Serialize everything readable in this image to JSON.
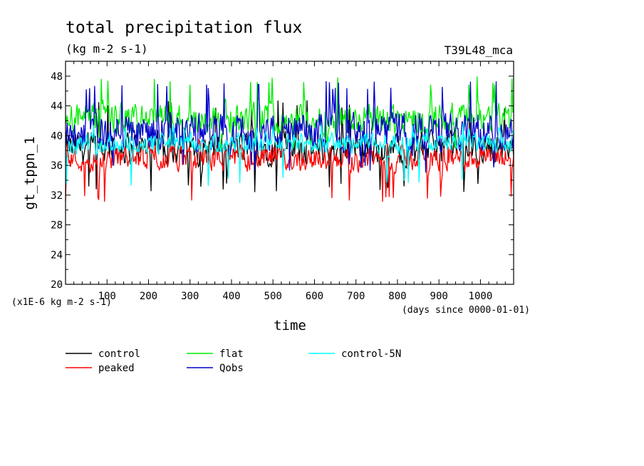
{
  "chart_data": {
    "type": "line",
    "title": "total precipitation flux",
    "units": "(kg m-2 s-1)",
    "run_label": "T39L48_mca",
    "xlabel": "time",
    "ylabel": "gt_tppn_1",
    "x_units_note": "(days since 0000-01-01)",
    "y_scale_note": "(x1E-6 kg m-2 s-1)",
    "xlim": [
      0,
      1080
    ],
    "ylim": [
      20,
      50
    ],
    "x_ticks": [
      100,
      200,
      300,
      400,
      500,
      600,
      700,
      800,
      900,
      1000
    ],
    "y_ticks": [
      20,
      24,
      28,
      32,
      36,
      40,
      44,
      48
    ],
    "grid": false,
    "legend_position": "bottom-left",
    "series": [
      {
        "name": "control",
        "color": "#000000",
        "mean": 38.4,
        "spread": 2.0,
        "min": 32.4,
        "max": 44.8
      },
      {
        "name": "peaked",
        "color": "#ff0000",
        "mean": 36.9,
        "spread": 1.5,
        "min": 31.0,
        "max": 39.5
      },
      {
        "name": "flat",
        "color": "#00ee00",
        "mean": 42.3,
        "spread": 1.9,
        "min": 38.0,
        "max": 48.0
      },
      {
        "name": "Qobs",
        "color": "#0000cc",
        "mean": 40.4,
        "spread": 2.4,
        "min": 35.0,
        "max": 47.4
      },
      {
        "name": "control-5N",
        "color": "#00ffff",
        "mean": 38.9,
        "spread": 1.3,
        "min": 33.2,
        "max": 42.0
      }
    ]
  }
}
